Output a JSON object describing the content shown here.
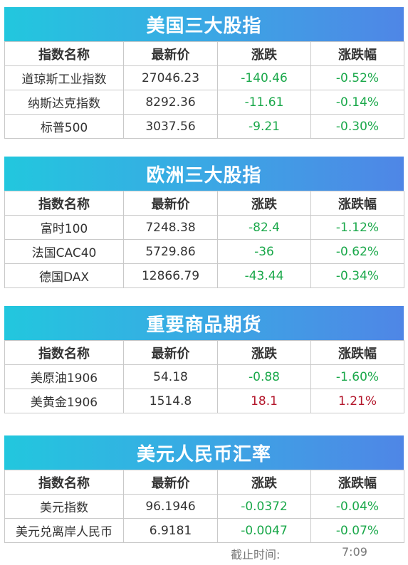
{
  "sections": [
    {
      "title": "美国三大股指",
      "headers": [
        "指数名称",
        "最新价",
        "涨跌",
        "涨跌幅"
      ],
      "rows": [
        {
          "name": "道琼斯工业指数",
          "price": "27046.23",
          "change": "-140.46",
          "pct": "-0.52%"
        },
        {
          "name": "纳斯达克指数",
          "price": "8292.36",
          "change": "-11.61",
          "pct": "-0.14%"
        },
        {
          "name": "标普500",
          "price": "3037.56",
          "change": "-9.21",
          "pct": "-0.30%"
        }
      ]
    },
    {
      "title": "欧洲三大股指",
      "headers": [
        "指数名称",
        "最新价",
        "涨跌",
        "涨跌幅"
      ],
      "rows": [
        {
          "name": "富时100",
          "price": "7248.38",
          "change": "-82.4",
          "pct": "-1.12%"
        },
        {
          "name": "法国CAC40",
          "price": "5729.86",
          "change": "-36",
          "pct": "-0.62%"
        },
        {
          "name": "德国DAX",
          "price": "12866.79",
          "change": "-43.44",
          "pct": "-0.34%"
        }
      ]
    },
    {
      "title": "重要商品期货",
      "headers": [
        "指数名称",
        "最新价",
        "涨跌",
        "涨跌幅"
      ],
      "rows": [
        {
          "name": "美原油1906",
          "price": "54.18",
          "change": "-0.88",
          "pct": "-1.60%"
        },
        {
          "name": "美黄金1906",
          "price": "1514.8",
          "change": "18.1",
          "pct": "1.21%"
        }
      ]
    },
    {
      "title": "美元人民币汇率",
      "headers": [
        "指数名称",
        "最新价",
        "涨跌",
        "涨跌幅"
      ],
      "rows": [
        {
          "name": "美元指数",
          "price": "96.1946",
          "change": "-0.0372",
          "pct": "-0.04%"
        },
        {
          "name": "美元兑离岸人民币",
          "price": "6.9181",
          "change": "-0.0047",
          "pct": "-0.07%"
        }
      ]
    }
  ],
  "footer": {
    "label": "截止时间:",
    "time": "7:09"
  },
  "colors": {
    "banner_start": "#22c7de",
    "banner_end": "#4f86e6",
    "down": "#1aa84a",
    "up": "#b3162b"
  }
}
